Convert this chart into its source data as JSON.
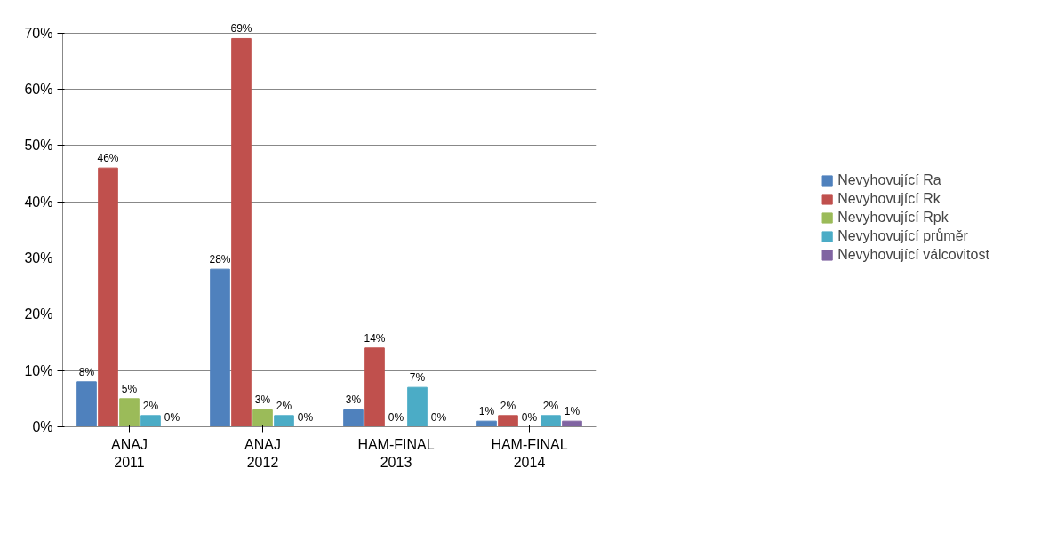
{
  "chart_data": {
    "type": "bar",
    "categories": [
      "ANAJ\n2011",
      "ANAJ\n2012",
      "HAM-FINAL\n2013",
      "HAM-FINAL\n2014"
    ],
    "series": [
      {
        "name": "Nevyhovující Ra",
        "color": "#4f81bd",
        "values": [
          8,
          28,
          3,
          1
        ],
        "value_labels": [
          "8%",
          "28%",
          "3%",
          "1%"
        ]
      },
      {
        "name": "Nevyhovující Rk",
        "color": "#c0504d",
        "values": [
          46,
          69,
          14,
          2
        ],
        "value_labels": [
          "46%",
          "69%",
          "14%",
          "2%"
        ]
      },
      {
        "name": "Nevyhovující Rpk",
        "color": "#9bbb59",
        "values": [
          5,
          3,
          0,
          0
        ],
        "value_labels": [
          "5%",
          "3%",
          "0%",
          "0%"
        ]
      },
      {
        "name": "Nevyhovující průměr",
        "color": "#4bacc6",
        "values": [
          2,
          2,
          7,
          2
        ],
        "value_labels": [
          "2%",
          "2%",
          "7%",
          "2%"
        ]
      },
      {
        "name": "Nevyhovující válcovitost",
        "color": "#8064a2",
        "values": [
          0,
          0,
          0,
          1
        ],
        "value_labels": [
          "0%",
          "0%",
          "0%",
          "1%"
        ]
      }
    ],
    "ylim": [
      0,
      70
    ],
    "yticks": [
      {
        "value": 0,
        "label": "0%"
      },
      {
        "value": 10,
        "label": "10%"
      },
      {
        "value": 20,
        "label": "20%"
      },
      {
        "value": 30,
        "label": "30%"
      },
      {
        "value": 40,
        "label": "40%"
      },
      {
        "value": 50,
        "label": "50%"
      },
      {
        "value": 60,
        "label": "60%"
      },
      {
        "value": 70,
        "label": "70%"
      }
    ],
    "grid": "y",
    "legend": "right"
  }
}
